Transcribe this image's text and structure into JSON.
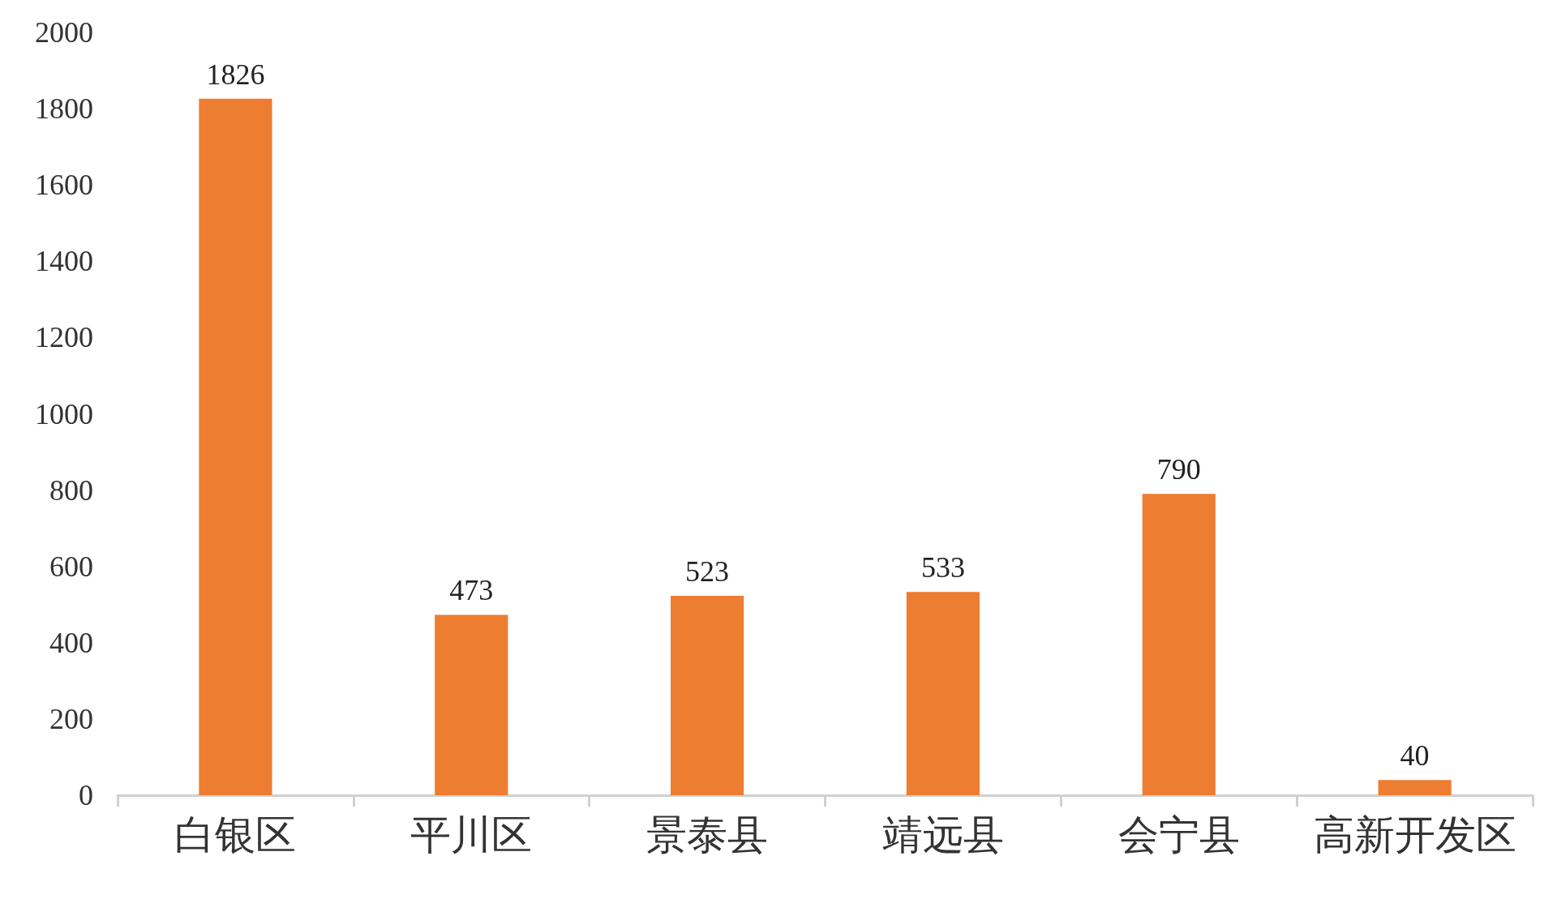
{
  "chart_data": {
    "type": "bar",
    "categories": [
      "白银区",
      "平川区",
      "景泰县",
      "靖远县",
      "会宁县",
      "高新开发区"
    ],
    "values": [
      1826,
      473,
      523,
      533,
      790,
      40
    ],
    "color": "#ed7d31",
    "ylim": [
      0,
      2000
    ],
    "yticks": [
      0,
      200,
      400,
      600,
      800,
      1000,
      1200,
      1400,
      1600,
      1800,
      2000
    ],
    "grid": false,
    "data_labels": true
  }
}
